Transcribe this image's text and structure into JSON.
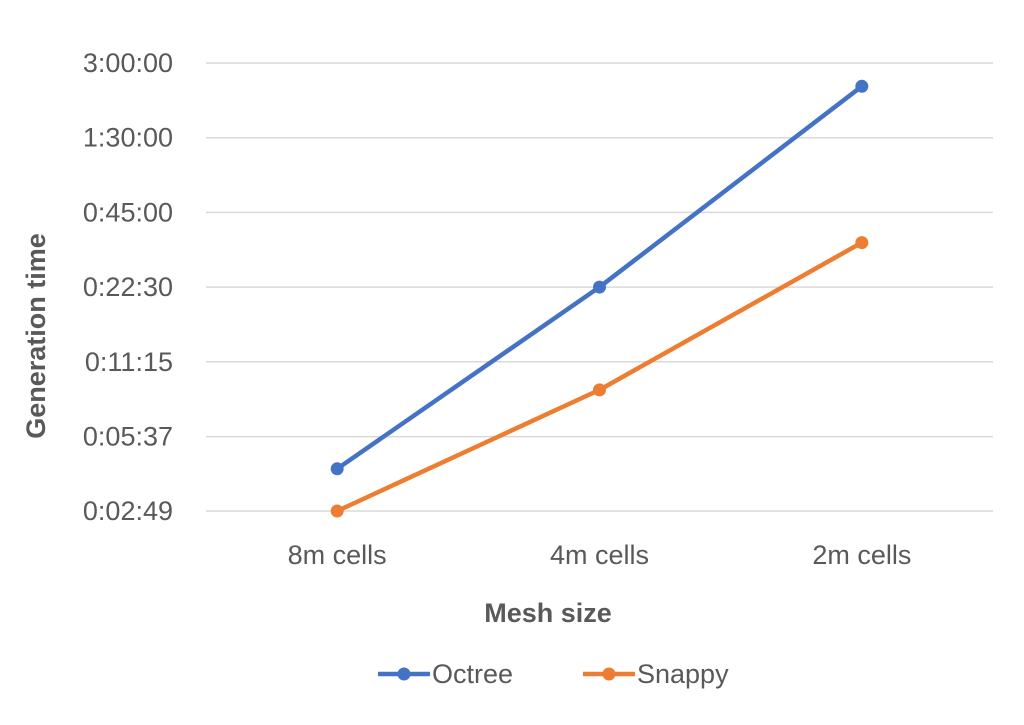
{
  "chart_data": {
    "type": "line",
    "title": "",
    "xlabel": "Mesh size",
    "ylabel": "Generation time",
    "categories": [
      "8m cells",
      "4m cells",
      "2m cells"
    ],
    "y_scale": "log2",
    "y_ticks": [
      "0:02:49",
      "0:05:37",
      "0:11:15",
      "0:22:30",
      "0:45:00",
      "1:30:00",
      "3:00:00"
    ],
    "ylim": [
      "0:02:49",
      "3:00:00"
    ],
    "grid": true,
    "legend_position": "bottom",
    "series": [
      {
        "name": "Octree",
        "color": "#4472c4",
        "values": [
          "0:04:10",
          "0:22:30",
          "2:25:00"
        ]
      },
      {
        "name": "Snappy",
        "color": "#ed7d31",
        "values": [
          "0:02:49",
          "0:08:40",
          "0:34:00"
        ]
      }
    ]
  }
}
